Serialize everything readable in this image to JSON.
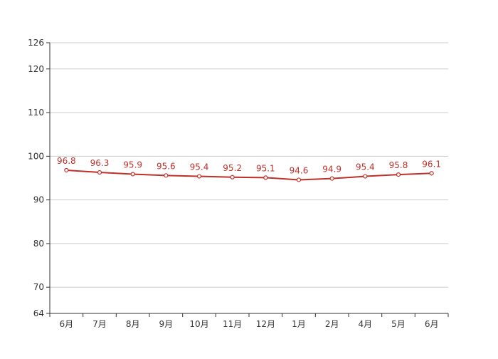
{
  "chart_data": {
    "type": "line",
    "categories": [
      "6月",
      "7月",
      "8月",
      "9月",
      "10月",
      "11月",
      "12月",
      "1月",
      "2月",
      "4月",
      "5月",
      "6月"
    ],
    "series": [
      {
        "values": [
          96.8,
          96.3,
          95.9,
          95.6,
          95.4,
          95.2,
          95.1,
          94.6,
          94.9,
          95.4,
          95.8,
          96.1
        ]
      }
    ],
    "ylim": [
      64,
      126
    ],
    "yticks": [
      64,
      70,
      80,
      90,
      100,
      110,
      120,
      126
    ],
    "grid": true,
    "data_labels": true,
    "colors": {
      "line": "#c0302a",
      "label": "#c0302a",
      "grid": "#cccccc",
      "axis": "#333333",
      "tick_text": "#333333",
      "marker_fill": "#ffffff"
    }
  }
}
